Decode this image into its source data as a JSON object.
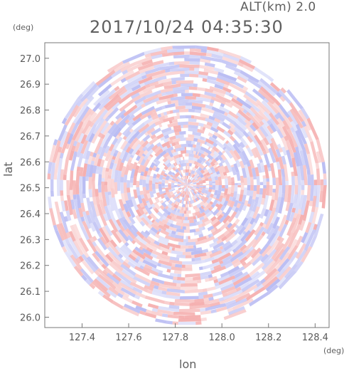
{
  "header": {
    "alt_label": "ALT(km) 2.0",
    "timestamp": "2017/10/24 04:35:30"
  },
  "chart_data": {
    "type": "heatmap",
    "title": "2017/10/24 04:35:30",
    "subtitle": "ALT(km) 2.0",
    "xlabel": "lon",
    "ylabel": "lat",
    "x_unit": "(deg)",
    "y_unit": "(deg)",
    "xlim": [
      127.24,
      128.46
    ],
    "ylim": [
      25.96,
      27.06
    ],
    "xticks": [
      "127.4",
      "127.6",
      "127.8",
      "128.0",
      "128.2",
      "128.4"
    ],
    "xtick_values": [
      127.4,
      127.6,
      127.8,
      128.0,
      128.2,
      128.4
    ],
    "yticks": [
      "26.0",
      "26.1",
      "26.2",
      "26.3",
      "26.4",
      "26.5",
      "26.6",
      "26.7",
      "26.8",
      "26.9",
      "27.0"
    ],
    "ytick_values": [
      26.0,
      26.1,
      26.2,
      26.3,
      26.4,
      26.5,
      26.6,
      26.7,
      26.8,
      26.9,
      27.0
    ],
    "radar_center": [
      127.85,
      26.51
    ],
    "radar_radius_lon": 0.6,
    "radar_radius_lat": 0.55,
    "colors": {
      "positive": "#f4a7a7",
      "negative": "#b3b6f2",
      "neutral": "#ffffff",
      "axis": "#777777"
    },
    "grid": false
  }
}
